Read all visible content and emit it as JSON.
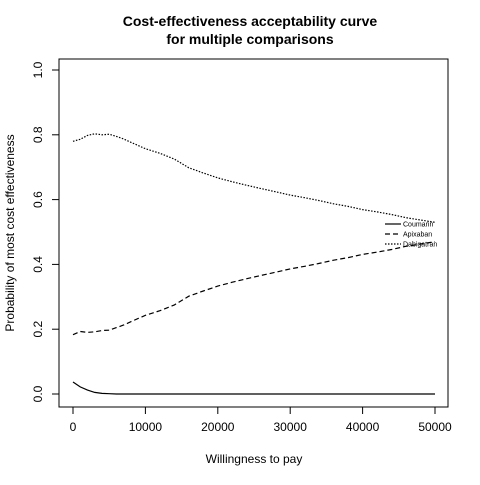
{
  "chart_data": {
    "type": "line",
    "title": "Cost-effectiveness acceptability curve",
    "subtitle": "for multiple comparisons",
    "xlabel": "Willingness to pay",
    "ylabel": "Probability of most cost effectiveness",
    "xlim": [
      0,
      50000
    ],
    "ylim": [
      0,
      1
    ],
    "xticks": [
      0,
      10000,
      20000,
      30000,
      40000,
      50000
    ],
    "xtick_labels": [
      "0",
      "10000",
      "20000",
      "30000",
      "40000",
      "50000"
    ],
    "yticks": [
      0,
      0.2,
      0.4,
      0.6,
      0.8,
      1.0
    ],
    "ytick_labels": [
      "0.0",
      "0.2",
      "0.4",
      "0.6",
      "0.8",
      "1.0"
    ],
    "grid": false,
    "legend_position": "right",
    "x": [
      0,
      1000,
      2000,
      3000,
      4000,
      5000,
      6000,
      7000,
      8000,
      10000,
      12000,
      14000,
      16000,
      18000,
      20000,
      22000,
      24000,
      26000,
      28000,
      30000,
      32000,
      34000,
      36000,
      38000,
      40000,
      42000,
      44000,
      46000,
      48000,
      50000
    ],
    "series": [
      {
        "name": "Coumarin",
        "line_style": "solid",
        "values": [
          0.037,
          0.022,
          0.012,
          0.005,
          0.002,
          0.001,
          0,
          0,
          0,
          0,
          0,
          0,
          0,
          0,
          0,
          0,
          0,
          0,
          0,
          0,
          0,
          0,
          0,
          0,
          0,
          0,
          0,
          0,
          0,
          0
        ]
      },
      {
        "name": "Apixaban",
        "line_style": "dashed",
        "values": [
          0.183,
          0.193,
          0.19,
          0.192,
          0.196,
          0.197,
          0.205,
          0.213,
          0.223,
          0.243,
          0.257,
          0.275,
          0.302,
          0.318,
          0.333,
          0.345,
          0.356,
          0.366,
          0.376,
          0.386,
          0.394,
          0.403,
          0.413,
          0.421,
          0.431,
          0.438,
          0.446,
          0.456,
          0.463,
          0.47
        ]
      },
      {
        "name": "Dabigatran",
        "line_style": "dotted",
        "values": [
          0.78,
          0.786,
          0.798,
          0.803,
          0.8,
          0.802,
          0.795,
          0.787,
          0.777,
          0.757,
          0.743,
          0.725,
          0.698,
          0.682,
          0.667,
          0.655,
          0.644,
          0.634,
          0.624,
          0.614,
          0.606,
          0.597,
          0.587,
          0.579,
          0.569,
          0.562,
          0.554,
          0.544,
          0.537,
          0.53
        ]
      }
    ]
  }
}
